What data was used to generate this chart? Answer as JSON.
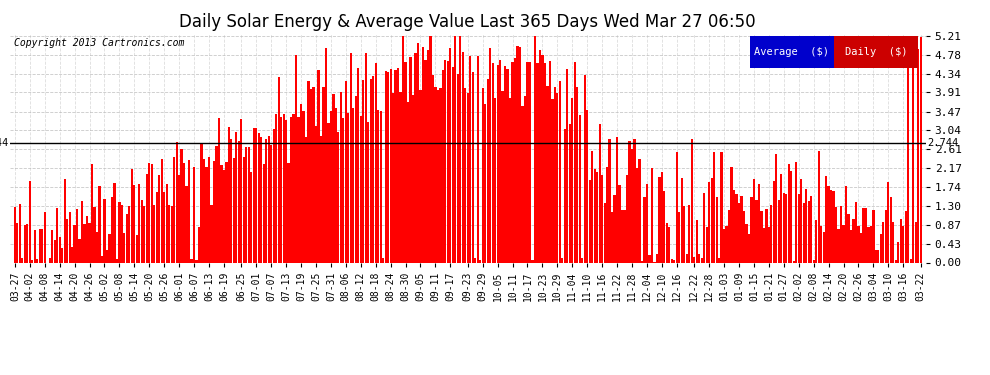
{
  "title": "Daily Solar Energy & Average Value Last 365 Days Wed Mar 27 06:50",
  "copyright": "Copyright 2013 Cartronics.com",
  "average_value": 2.744,
  "ylim": [
    0.0,
    5.21
  ],
  "yticks": [
    0.0,
    0.43,
    0.87,
    1.3,
    1.74,
    2.17,
    2.61,
    3.04,
    3.47,
    3.91,
    4.34,
    4.78,
    5.21
  ],
  "bar_color": "#FF0000",
  "average_line_color": "#000000",
  "background_color": "#FFFFFF",
  "grid_color": "#BBBBBB",
  "title_fontsize": 12,
  "legend_avg_color": "#0000CC",
  "legend_daily_color": "#CC0000",
  "x_labels": [
    "03-27",
    "04-02",
    "04-08",
    "04-14",
    "04-20",
    "04-26",
    "05-02",
    "05-08",
    "05-14",
    "05-20",
    "05-26",
    "06-01",
    "06-07",
    "06-13",
    "06-19",
    "06-25",
    "07-01",
    "07-07",
    "07-13",
    "07-19",
    "07-25",
    "07-31",
    "08-06",
    "08-12",
    "08-18",
    "08-24",
    "08-30",
    "09-05",
    "09-11",
    "09-17",
    "09-23",
    "09-29",
    "10-05",
    "10-11",
    "10-17",
    "10-23",
    "10-29",
    "11-04",
    "11-10",
    "11-16",
    "11-22",
    "11-28",
    "12-04",
    "12-10",
    "12-16",
    "12-22",
    "12-28",
    "01-03",
    "01-09",
    "01-15",
    "01-21",
    "01-27",
    "02-02",
    "02-08",
    "02-14",
    "02-20",
    "02-26",
    "03-04",
    "03-10",
    "03-16",
    "03-22"
  ],
  "n_bars": 365,
  "seed": 42
}
